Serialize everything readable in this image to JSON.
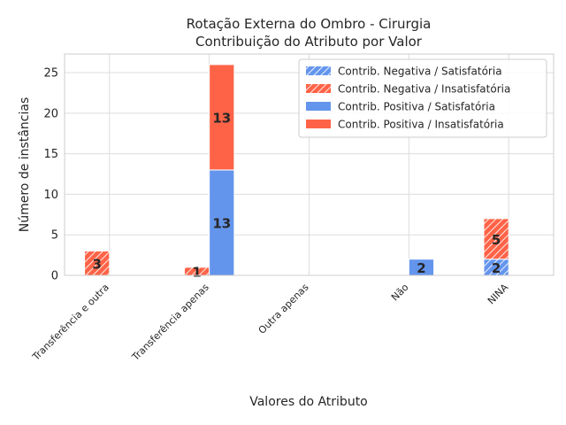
{
  "chart_data": {
    "type": "bar",
    "title_line1": "Rotação Externa do Ombro - Cirurgia",
    "title_line2": "Contribuição do Atributo por Valor",
    "xlabel": "Valores do Atributo",
    "ylabel": "Número de instâncias",
    "categories": [
      "Transferência e outra",
      "Transferência apenas",
      "Outra apenas",
      "Não",
      "NINA"
    ],
    "ylim": [
      0,
      27.3
    ],
    "yticks": [
      0,
      5,
      10,
      15,
      20,
      25
    ],
    "grid": true,
    "legend_position": "top-right",
    "colors": {
      "satisfatoria": "#6495ed",
      "insatisfatoria": "#ff6347"
    },
    "series": [
      {
        "name": "Contrib. Negativa / Satisfatória",
        "group": "negativa",
        "hatch": true,
        "color": "#6495ed",
        "values": [
          0,
          0,
          0,
          0,
          2
        ]
      },
      {
        "name": "Contrib. Negativa / Insatisfatória",
        "group": "negativa",
        "hatch": true,
        "color": "#ff6347",
        "values": [
          3,
          1,
          0,
          0,
          5
        ]
      },
      {
        "name": "Contrib. Positiva / Satisfatória",
        "group": "positiva",
        "hatch": false,
        "color": "#6495ed",
        "values": [
          0,
          13,
          0,
          2,
          0
        ]
      },
      {
        "name": "Contrib. Positiva / Insatisfatória",
        "group": "positiva",
        "hatch": false,
        "color": "#ff6347",
        "values": [
          0,
          13,
          0,
          0,
          0
        ]
      }
    ]
  }
}
